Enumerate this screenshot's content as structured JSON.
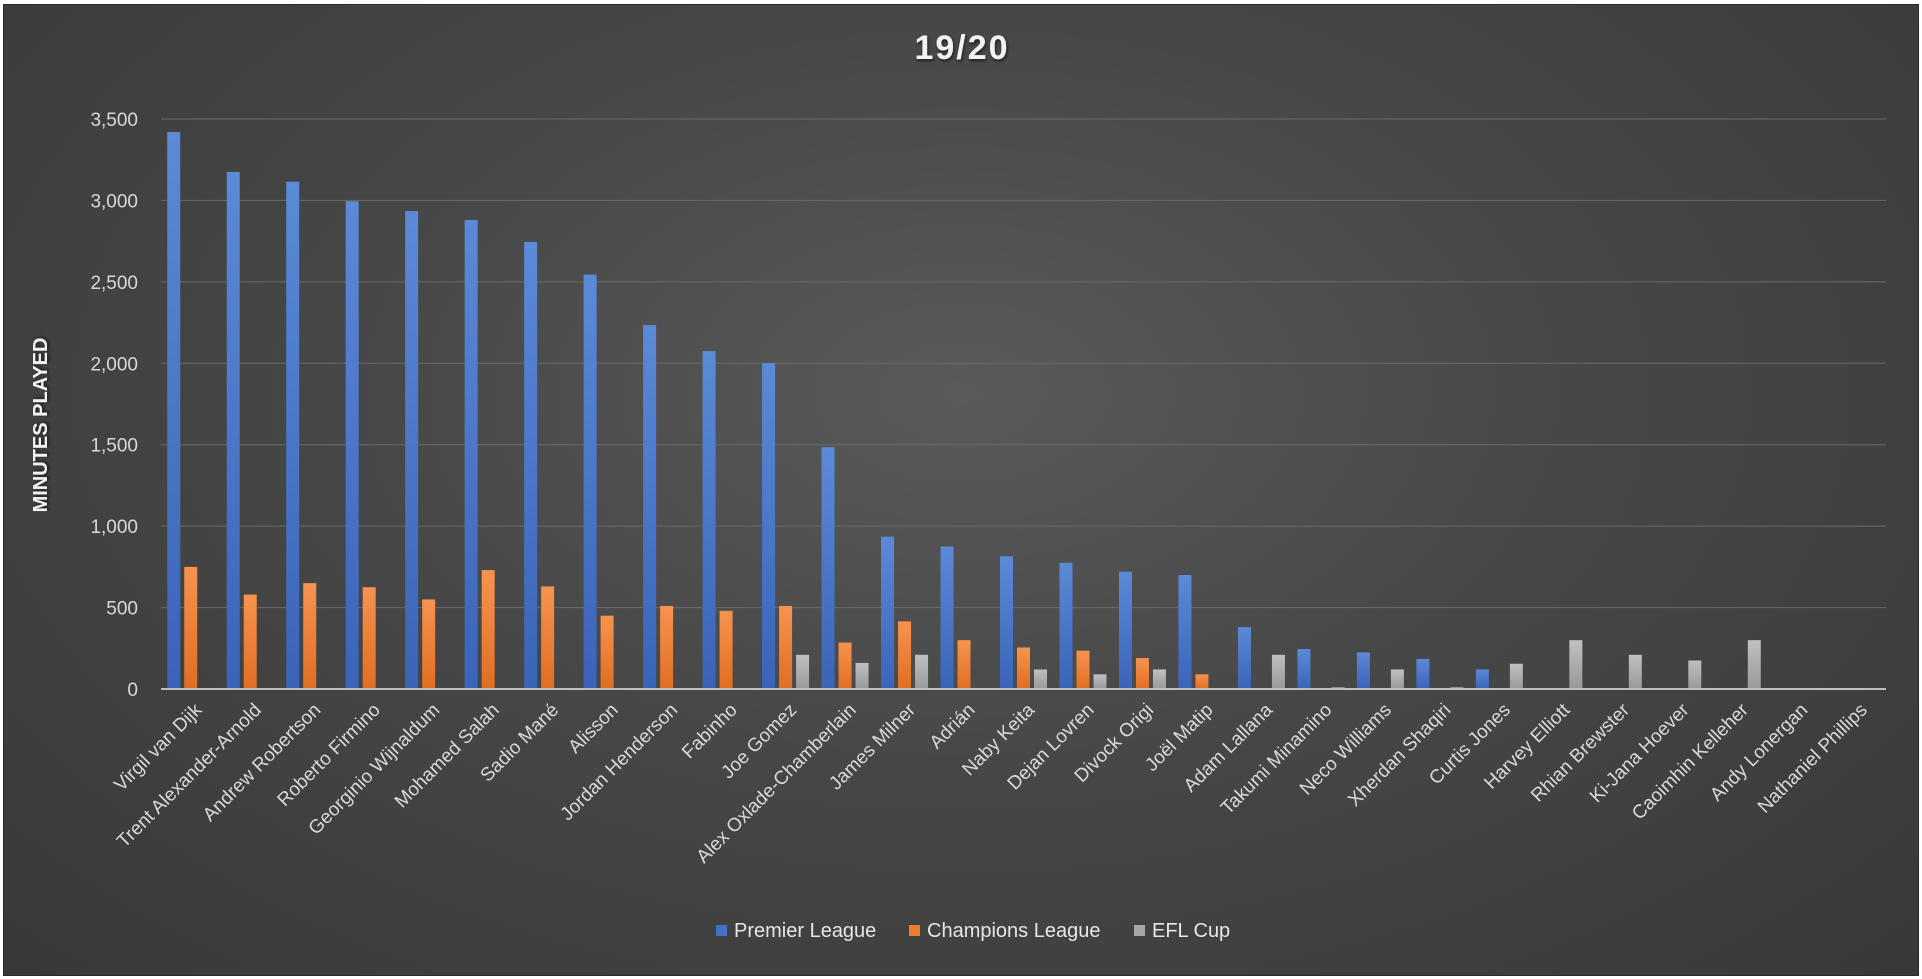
{
  "chart_data": {
    "type": "bar",
    "title": "19/20",
    "xlabel": "",
    "ylabel": "MINUTES PLAYED",
    "ylim": [
      0,
      3500
    ],
    "yticks": [
      0,
      500,
      1000,
      1500,
      2000,
      2500,
      3000,
      3500
    ],
    "ytick_labels": [
      "0",
      "500",
      "1,000",
      "1,500",
      "2,000",
      "2,500",
      "3,000",
      "3,500"
    ],
    "grid": true,
    "legend_position": "bottom",
    "categories": [
      "Virgil van Dijk",
      "Trent Alexander-Arnold",
      "Andrew Robertson",
      "Roberto Firmino",
      "Georginio Wijnaldum",
      "Mohamed Salah",
      "Sadio Mané",
      "Alisson",
      "Jordan Henderson",
      "Fabinho",
      "Joe Gomez",
      "Alex Oxlade-Chamberlain",
      "James Milner",
      "Adrián",
      "Naby Keita",
      "Dejan Lovren",
      "Divock Origi",
      "Joël Matip",
      "Adam Lallana",
      "Takumi Minamino",
      "Neco Williams",
      "Xherdan Shaqiri",
      "Curtis Jones",
      "Harvey Elliott",
      "Rhian Brewster",
      "Ki-Jana Hoever",
      "Caoimhin Kelleher",
      "Andy Lonergan",
      "Nathaniel Phillips"
    ],
    "series": [
      {
        "name": "Premier League",
        "color": "#4472c4",
        "values": [
          3420,
          3175,
          3115,
          2995,
          2935,
          2880,
          2745,
          2545,
          2235,
          2075,
          2000,
          1485,
          935,
          875,
          815,
          775,
          720,
          700,
          380,
          245,
          225,
          185,
          120,
          0,
          0,
          0,
          0,
          0,
          0
        ]
      },
      {
        "name": "Champions League",
        "color": "#ed7d31",
        "values": [
          750,
          580,
          650,
          625,
          550,
          730,
          630,
          450,
          510,
          480,
          510,
          285,
          415,
          300,
          255,
          235,
          190,
          90,
          0,
          0,
          0,
          0,
          0,
          0,
          0,
          0,
          0,
          0,
          0
        ]
      },
      {
        "name": "EFL Cup",
        "color": "#a5a5a5",
        "values": [
          0,
          0,
          0,
          0,
          0,
          0,
          0,
          0,
          0,
          0,
          210,
          160,
          210,
          0,
          120,
          90,
          120,
          0,
          210,
          10,
          120,
          10,
          155,
          300,
          210,
          175,
          300,
          0,
          0
        ]
      }
    ]
  }
}
